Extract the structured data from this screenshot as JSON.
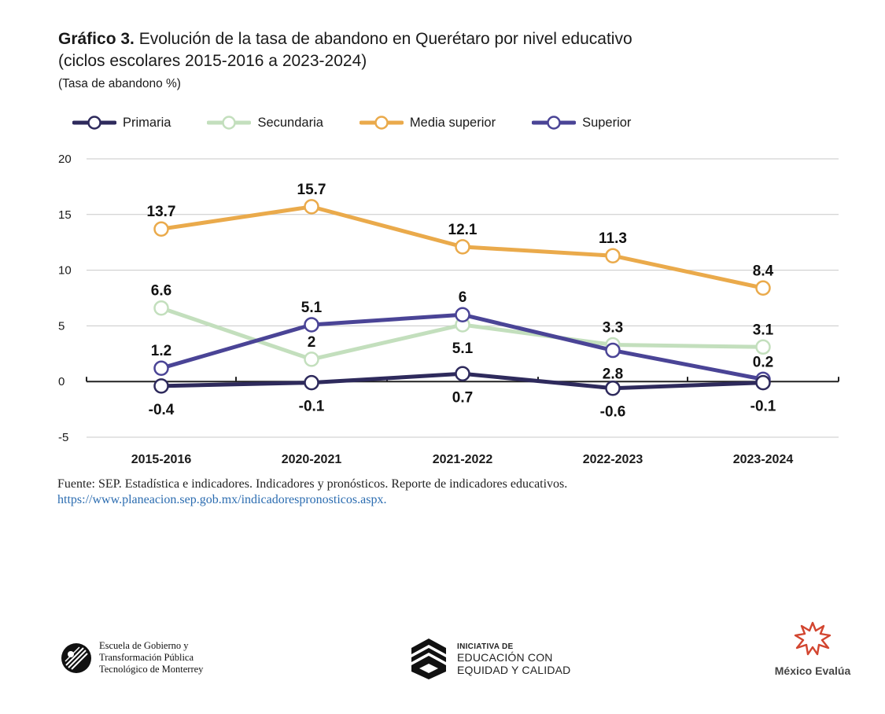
{
  "header": {
    "title_bold": "Gráfico 3.",
    "title_rest": " Evolución de la tasa de abandono en Querétaro por nivel educativo",
    "title_line2": "(ciclos escolares 2015-2016 a 2023-2024)",
    "units": "(Tasa de abandono %)"
  },
  "colors": {
    "primaria": "#2e2a5c",
    "secundaria": "#c3dfbd",
    "media_superior": "#eaaa4b",
    "superior": "#4a4496",
    "grid": "#c8c8c8",
    "axis": "#222222"
  },
  "chart_data": {
    "type": "line",
    "title": "Evolución de la tasa de abandono en Querétaro por nivel educativo",
    "ylabel": "Tasa de abandono %",
    "xlabel": "",
    "categories": [
      "2015-2016",
      "2020-2021",
      "2021-2022",
      "2022-2023",
      "2023-2024"
    ],
    "ylim": [
      -5,
      20
    ],
    "yticks": [
      20,
      15,
      10,
      5,
      0,
      -5
    ],
    "grid": true,
    "legend_position": "top-left",
    "series": [
      {
        "key": "primaria",
        "name": "Primaria",
        "values": [
          -0.4,
          -0.1,
          0.7,
          -0.6,
          -0.1
        ],
        "labels": [
          "-0.4",
          "-0.1",
          "0.7",
          "-0.6",
          "-0.1"
        ],
        "label_pos": [
          "below",
          "below",
          "below",
          "below",
          "below"
        ]
      },
      {
        "key": "secundaria",
        "name": "Secundaria",
        "values": [
          6.6,
          2,
          5.1,
          3.3,
          3.1
        ],
        "labels": [
          "6.6",
          "2",
          "5.1",
          "3.3",
          "3.1"
        ],
        "label_pos": [
          "above",
          "above",
          "below",
          "above",
          "above"
        ]
      },
      {
        "key": "media_superior",
        "name": "Media superior",
        "values": [
          13.7,
          15.7,
          12.1,
          11.3,
          8.4
        ],
        "labels": [
          "13.7",
          "15.7",
          "12.1",
          "11.3",
          "8.4"
        ],
        "label_pos": [
          "above",
          "above",
          "above",
          "above",
          "above"
        ]
      },
      {
        "key": "superior",
        "name": "Superior",
        "values": [
          1.2,
          5.1,
          6,
          2.8,
          0.2
        ],
        "labels": [
          "1.2",
          "5.1",
          "6",
          "2.8",
          "0.2"
        ],
        "label_pos": [
          "above",
          "above",
          "above",
          "below",
          "above"
        ]
      }
    ]
  },
  "source": {
    "text": "Fuente: SEP. Estadística e indicadores. Indicadores y pronósticos. Reporte de indicadores educativos.",
    "link": "https://www.planeacion.sep.gob.mx/indicadorespronosticos.aspx."
  },
  "logos": {
    "escuela_line1": "Escuela de Gobierno y",
    "escuela_line2": "Transformación Pública",
    "escuela_line3": "Tecnológico de Monterrey",
    "iniciativa_small": "INICIATIVA DE",
    "iniciativa_line1": "EDUCACIÓN CON",
    "iniciativa_line2": "EQUIDAD Y CALIDAD",
    "mexico_evalua": "México Evalúa"
  }
}
